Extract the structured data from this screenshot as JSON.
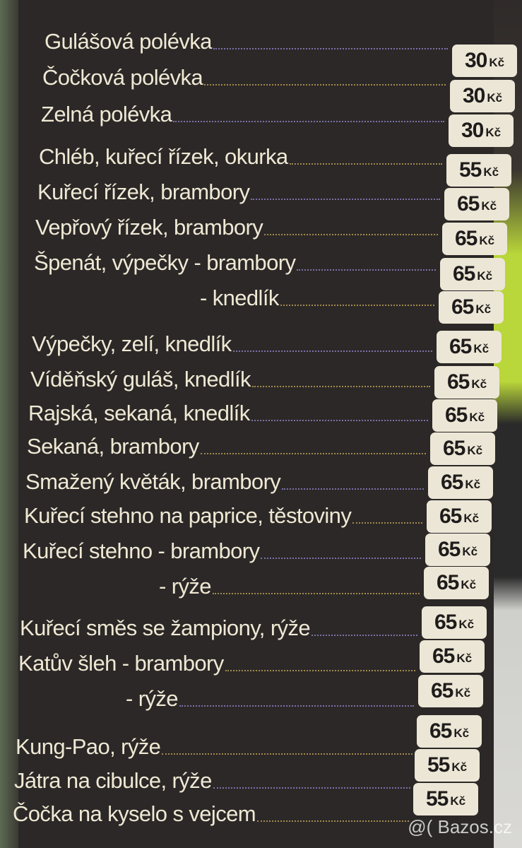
{
  "menu": {
    "currency": "Kč",
    "items": [
      {
        "name": "Gulášová polévka",
        "price": "30"
      },
      {
        "name": "Čočková polévka",
        "price": "30"
      },
      {
        "name": "Zelná polévka",
        "price": "30"
      },
      {
        "name": "Chléb, kuřecí řízek, okurka",
        "price": "55"
      },
      {
        "name": "Kuřecí řízek, brambory",
        "price": "65"
      },
      {
        "name": "Vepřový řízek, brambory",
        "price": "65"
      },
      {
        "name": "Špenát, výpečky - brambory",
        "price": "65"
      },
      {
        "name": "- knedlík",
        "price": "65"
      },
      {
        "name": "Výpečky, zelí, knedlík",
        "price": "65"
      },
      {
        "name": "Víděňský guláš, knedlík",
        "price": "65"
      },
      {
        "name": "Rajská, sekaná, knedlík",
        "price": "65"
      },
      {
        "name": "Sekaná, brambory",
        "price": "65"
      },
      {
        "name": "Smažený květák, brambory",
        "price": "65"
      },
      {
        "name": "Kuřecí stehno na paprice, těstoviny",
        "price": "65"
      },
      {
        "name": "Kuřecí stehno - brambory",
        "price": "65"
      },
      {
        "name": "- rýže",
        "price": "65"
      },
      {
        "name": "Kuřecí směs se žampiony, rýže",
        "price": "65"
      },
      {
        "name": "Katův šleh - brambory",
        "price": "65"
      },
      {
        "name": "- rýže",
        "price": "65"
      },
      {
        "name": "Kung-Pao, rýže",
        "price": "65"
      },
      {
        "name": "Játra na cibulce, rýže",
        "price": "55"
      },
      {
        "name": "Čočka na kyselo s vejcem",
        "price": "55"
      }
    ]
  },
  "watermark": "@( Bazos.cz"
}
